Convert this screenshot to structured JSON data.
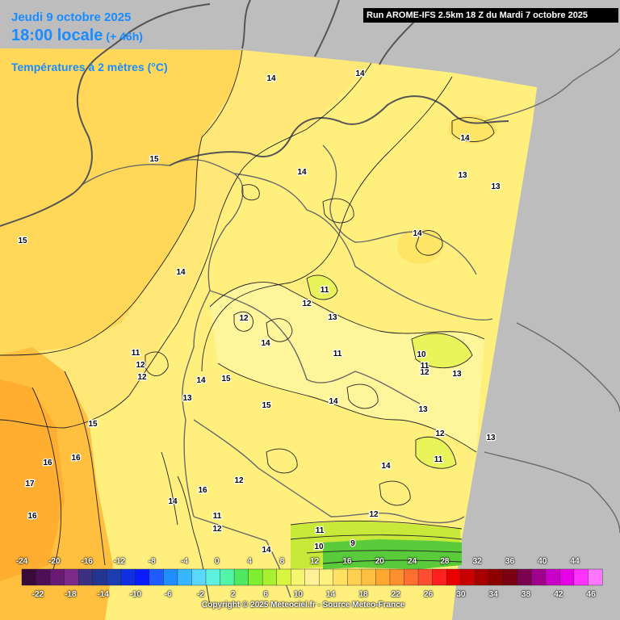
{
  "header": {
    "date": "Jeudi 9 octobre 2025",
    "time": "18:00 locale",
    "lead": "(+ 46h)",
    "parameter": "Températures à 2 mètres (°C)",
    "run": "Run AROME-IFS 2.5km 18 Z du Mardi 7 octobre 2025"
  },
  "legend": {
    "top_values": [
      "-24",
      "-20",
      "-16",
      "-12",
      "-8",
      "-4",
      "0",
      "4",
      "8",
      "12",
      "16",
      "20",
      "24",
      "28",
      "32",
      "36",
      "40",
      "44"
    ],
    "bottom_values": [
      "-22",
      "-18",
      "-14",
      "-10",
      "-6",
      "-2",
      "2",
      "6",
      "10",
      "14",
      "18",
      "22",
      "26",
      "30",
      "34",
      "38",
      "42",
      "46"
    ],
    "colors": [
      "#3a0b3a",
      "#4f0f56",
      "#6a1a75",
      "#7d2a8a",
      "#3b2f80",
      "#23358f",
      "#1c3db2",
      "#0f2fe0",
      "#0a1cff",
      "#1f5cff",
      "#1f8cff",
      "#38b6ff",
      "#5ad8ff",
      "#60f0e0",
      "#50f5a8",
      "#50e860",
      "#80ee30",
      "#a8f030",
      "#d8f540",
      "#f5f570",
      "#fff09a",
      "#fff080",
      "#ffe060",
      "#ffd050",
      "#ffbf40",
      "#ffa830",
      "#ff9030",
      "#ff7030",
      "#ff4f30",
      "#ff2020",
      "#e80000",
      "#c80000",
      "#a80000",
      "#8c0000",
      "#780010",
      "#7a0050",
      "#a0008c",
      "#c800c8",
      "#e600e6",
      "#ff33ff",
      "#ff77ff"
    ]
  },
  "copyright": "Copyright © 2025 Meteociel.fr - Source Meteo-France",
  "contour_labels": [
    {
      "t": "14"
    },
    {
      "t": "14"
    },
    {
      "t": "15"
    },
    {
      "t": "14"
    },
    {
      "t": "14"
    },
    {
      "t": "13"
    },
    {
      "t": "13"
    },
    {
      "t": "15"
    },
    {
      "t": "14"
    },
    {
      "t": "14"
    },
    {
      "t": "11"
    },
    {
      "t": "12"
    },
    {
      "t": "13"
    },
    {
      "t": "12"
    },
    {
      "t": "12"
    },
    {
      "t": "11"
    },
    {
      "t": "11"
    },
    {
      "t": "12"
    },
    {
      "t": "12"
    },
    {
      "t": "13"
    },
    {
      "t": "14"
    },
    {
      "t": "15"
    },
    {
      "t": "13"
    },
    {
      "t": "14"
    },
    {
      "t": "10"
    },
    {
      "t": "11"
    },
    {
      "t": "12"
    },
    {
      "t": "13"
    },
    {
      "t": "13"
    },
    {
      "t": "15"
    },
    {
      "t": "16"
    },
    {
      "t": "16"
    },
    {
      "t": "17"
    },
    {
      "t": "16"
    },
    {
      "t": "14"
    },
    {
      "t": "16"
    },
    {
      "t": "12"
    },
    {
      "t": "11"
    },
    {
      "t": "12"
    },
    {
      "t": "14"
    },
    {
      "t": "14"
    },
    {
      "t": "12"
    },
    {
      "t": "11"
    },
    {
      "t": "10"
    },
    {
      "t": "11"
    },
    {
      "t": "9"
    },
    {
      "t": "15"
    },
    {
      "t": "14"
    }
  ]
}
